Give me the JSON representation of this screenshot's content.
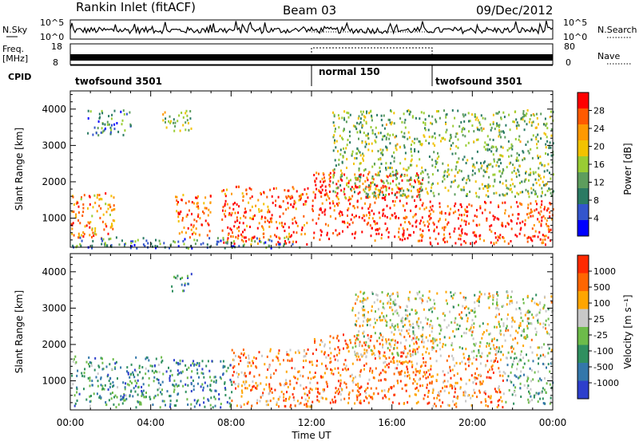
{
  "header": {
    "station": "Rankin Inlet (fitACF)",
    "beam": "Beam 03",
    "date": "09/Dec/2012"
  },
  "aux_panels": {
    "nsky_label": "N.Sky",
    "nsky_ticks": [
      "10^5",
      "10^0"
    ],
    "nsearch_label": "N.Search",
    "freq_label_1": "Freq.",
    "freq_label_2": "[MHz]",
    "freq_ticks": [
      "18",
      "8"
    ],
    "nave_ticks": [
      "80",
      "0"
    ],
    "nave_label": "Nave",
    "cpid_label": "CPID",
    "cpid_segments": [
      {
        "name": "twofsound 3501",
        "start_hour": 0,
        "end_hour": 12
      },
      {
        "name": "normal 150",
        "start_hour": 12,
        "end_hour": 18
      },
      {
        "name": "twofsound 3501",
        "start_hour": 18,
        "end_hour": 24
      }
    ]
  },
  "chart_data": [
    {
      "type": "heatmap",
      "name": "power",
      "xlabel": "",
      "ylabel": "Slant Range [km]",
      "xlim": [
        0,
        24
      ],
      "ylim": [
        200,
        4500
      ],
      "yticks": [
        1000,
        2000,
        3000,
        4000
      ],
      "colorbar_label": "Power [dB]",
      "colorbar_ticks": [
        "28",
        "24",
        "20",
        "16",
        "12",
        "8",
        "4"
      ],
      "colorscale": [
        "#0000ff",
        "#3355cc",
        "#2a7a63",
        "#5d9d5d",
        "#99cc33",
        "#f2c200",
        "#ff9900",
        "#ff5a00",
        "#ff0000"
      ],
      "echo_regions": [
        {
          "t0": 0.0,
          "t1": 2.2,
          "r0": 450,
          "r1": 1750,
          "level": 0.75
        },
        {
          "t0": 5.2,
          "t1": 7.0,
          "r0": 500,
          "r1": 1700,
          "level": 0.8
        },
        {
          "t0": 7.5,
          "t1": 11.8,
          "r0": 300,
          "r1": 1900,
          "level": 0.85
        },
        {
          "t0": 12.0,
          "t1": 17.5,
          "r0": 400,
          "r1": 2300,
          "level": 0.9
        },
        {
          "t0": 17.5,
          "t1": 24.0,
          "r0": 300,
          "r1": 1500,
          "level": 0.9
        },
        {
          "t0": 13.0,
          "t1": 24.0,
          "r0": 1600,
          "r1": 4000,
          "level": 0.45
        },
        {
          "t0": 0.0,
          "t1": 11.5,
          "r0": 200,
          "r1": 500,
          "level": 0.3
        },
        {
          "t0": 4.5,
          "t1": 6.0,
          "r0": 3400,
          "r1": 4000,
          "level": 0.5
        },
        {
          "t0": 0.8,
          "t1": 3.0,
          "r0": 3300,
          "r1": 4000,
          "level": 0.3
        }
      ]
    },
    {
      "type": "heatmap",
      "name": "velocity",
      "xlabel": "Time UT",
      "ylabel": "Slant Range [km]",
      "xlim": [
        0,
        24
      ],
      "ylim": [
        200,
        4500
      ],
      "xticks": [
        "00:00",
        "04:00",
        "08:00",
        "12:00",
        "16:00",
        "20:00",
        "00:00"
      ],
      "yticks": [
        1000,
        2000,
        3000,
        4000
      ],
      "colorbar_label": "Velocity [m s⁻¹]",
      "colorbar_ticks": [
        "1000",
        "500",
        "100",
        "25",
        "-25",
        "-100",
        "-500",
        "-1000"
      ],
      "colorscale": [
        "#2d3fcc",
        "#3377aa",
        "#2f8f5f",
        "#6dbb4a",
        "#c8c8c8",
        "#ffa500",
        "#ff6600",
        "#ff2a00"
      ],
      "echo_regions": [
        {
          "t0": 0.0,
          "t1": 4.5,
          "r0": 300,
          "r1": 1700,
          "level": 0.3
        },
        {
          "t0": 4.5,
          "t1": 8.0,
          "r0": 300,
          "r1": 1600,
          "level": 0.25
        },
        {
          "t0": 8.0,
          "t1": 12.0,
          "r0": 300,
          "r1": 1900,
          "level": 0.75
        },
        {
          "t0": 12.0,
          "t1": 18.0,
          "r0": 400,
          "r1": 2300,
          "level": 0.8
        },
        {
          "t0": 18.0,
          "t1": 21.5,
          "r0": 300,
          "r1": 1700,
          "level": 0.75
        },
        {
          "t0": 21.5,
          "t1": 24.0,
          "r0": 400,
          "r1": 1700,
          "level": 0.4
        },
        {
          "t0": 14.0,
          "t1": 24.0,
          "r0": 1700,
          "r1": 3500,
          "level": 0.55
        },
        {
          "t0": 5.0,
          "t1": 6.0,
          "r0": 3500,
          "r1": 4000,
          "level": 0.3
        }
      ]
    }
  ]
}
